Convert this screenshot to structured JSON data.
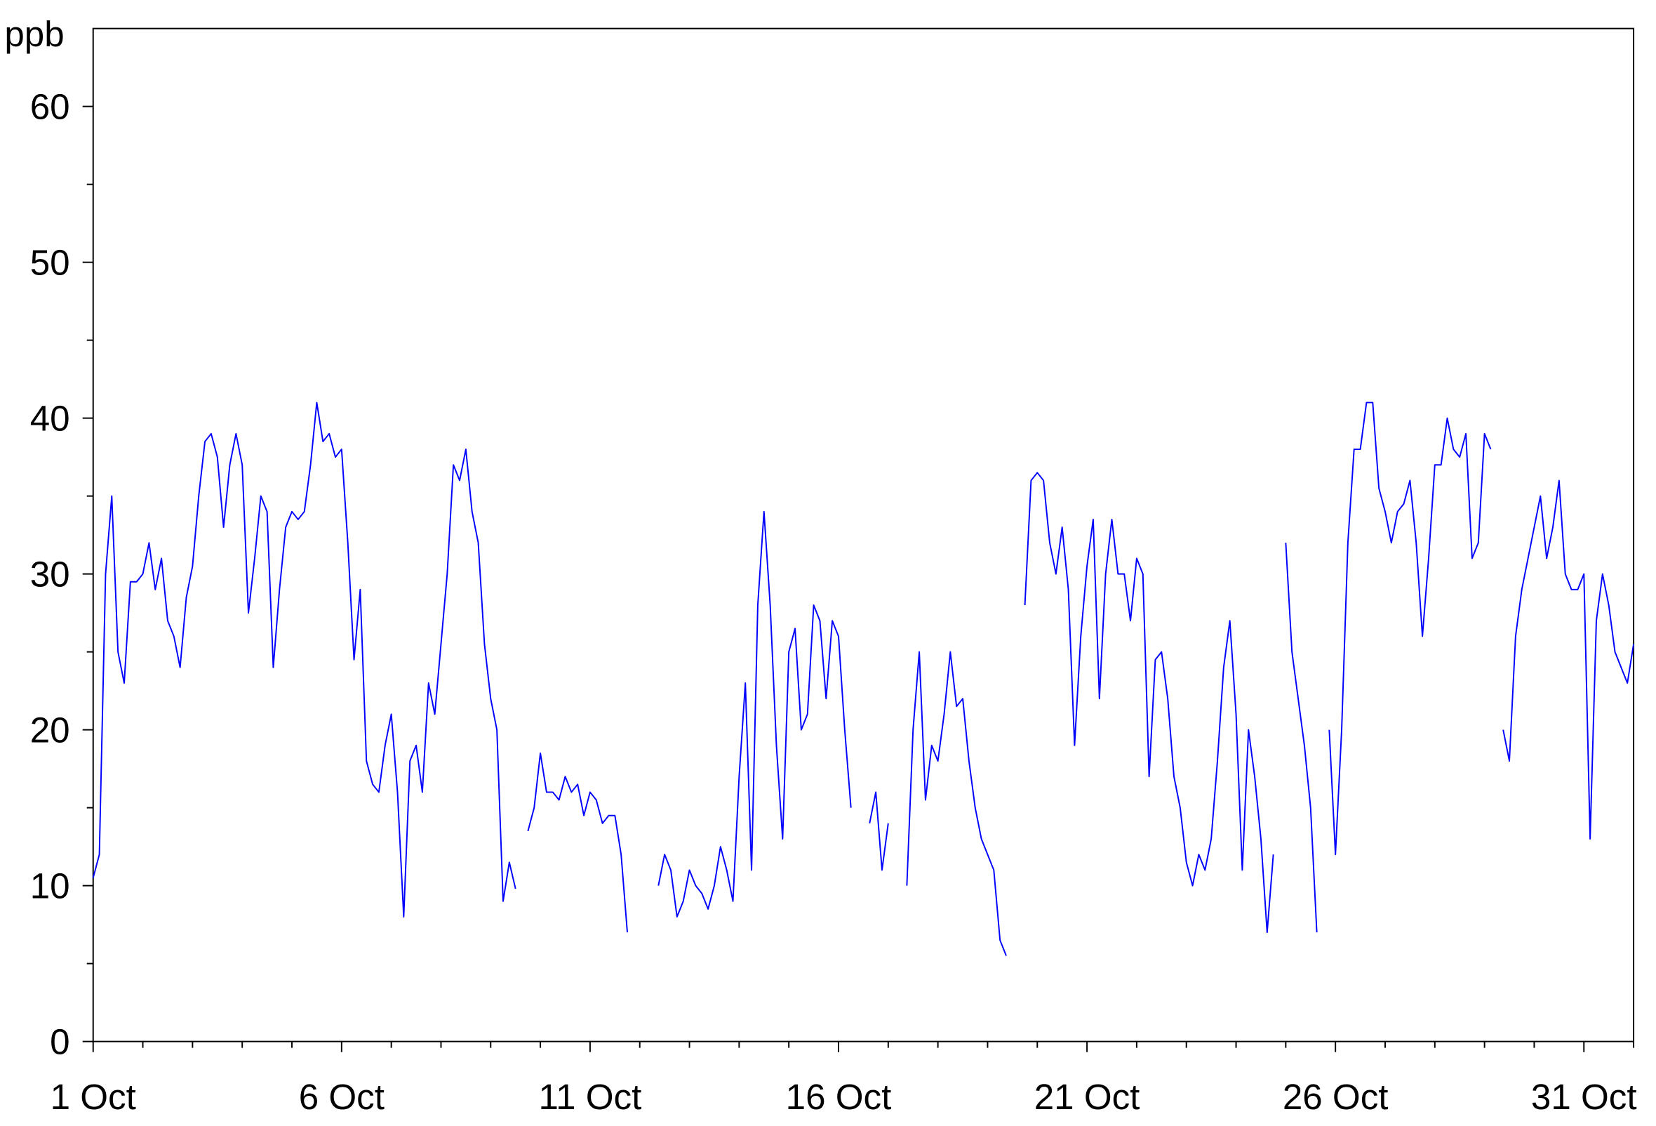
{
  "chart_data": {
    "type": "line",
    "ylabel": "ppb",
    "x": [
      1,
      1.125,
      1.25,
      1.375,
      1.5,
      1.625,
      1.75,
      1.875,
      2,
      2.125,
      2.25,
      2.375,
      2.5,
      2.625,
      2.75,
      2.875,
      3,
      3.125,
      3.25,
      3.375,
      3.5,
      3.625,
      3.75,
      3.875,
      4,
      4.125,
      4.25,
      4.375,
      4.5,
      4.625,
      4.75,
      4.875,
      5,
      5.125,
      5.25,
      5.375,
      5.5,
      5.625,
      5.75,
      5.875,
      6,
      6.125,
      6.25,
      6.375,
      6.5,
      6.625,
      6.75,
      6.875,
      7,
      7.125,
      7.25,
      7.375,
      7.5,
      7.625,
      7.75,
      7.875,
      8,
      8.125,
      8.25,
      8.375,
      8.5,
      8.625,
      8.75,
      8.875,
      9,
      9.125,
      9.25,
      9.375,
      9.5,
      9.625,
      9.75,
      9.875,
      10,
      10.125,
      10.25,
      10.375,
      10.5,
      10.625,
      10.75,
      10.875,
      11,
      11.125,
      11.25,
      11.375,
      11.5,
      11.625,
      11.75,
      11.875,
      12,
      12.125,
      12.25,
      12.375,
      12.5,
      12.625,
      12.75,
      12.875,
      13,
      13.125,
      13.25,
      13.375,
      13.5,
      13.625,
      13.75,
      13.875,
      14,
      14.125,
      14.25,
      14.375,
      14.5,
      14.625,
      14.75,
      14.875,
      15,
      15.125,
      15.25,
      15.375,
      15.5,
      15.625,
      15.75,
      15.875,
      16,
      16.125,
      16.25,
      16.375,
      16.5,
      16.625,
      16.75,
      16.875,
      17,
      17.125,
      17.25,
      17.375,
      17.5,
      17.625,
      17.75,
      17.875,
      18,
      18.125,
      18.25,
      18.375,
      18.5,
      18.625,
      18.75,
      18.875,
      19,
      19.125,
      19.25,
      19.375,
      19.5,
      19.625,
      19.75,
      19.875,
      20,
      20.125,
      20.25,
      20.375,
      20.5,
      20.625,
      20.75,
      20.875,
      21,
      21.125,
      21.25,
      21.375,
      21.5,
      21.625,
      21.75,
      21.875,
      22,
      22.125,
      22.25,
      22.375,
      22.5,
      22.625,
      22.75,
      22.875,
      23,
      23.125,
      23.25,
      23.375,
      23.5,
      23.625,
      23.75,
      23.875,
      24,
      24.125,
      24.25,
      24.375,
      24.5,
      24.625,
      24.75,
      24.875,
      25,
      25.125,
      25.25,
      25.375,
      25.5,
      25.625,
      25.75,
      25.875,
      26,
      26.125,
      26.25,
      26.375,
      26.5,
      26.625,
      26.75,
      26.875,
      27,
      27.125,
      27.25,
      27.375,
      27.5,
      27.625,
      27.75,
      27.875,
      28,
      28.125,
      28.25,
      28.375,
      28.5,
      28.625,
      28.75,
      28.875,
      29,
      29.125,
      29.25,
      29.375,
      29.5,
      29.625,
      29.75,
      29.875,
      30,
      30.125,
      30.25,
      30.375,
      30.5,
      30.625,
      30.75,
      30.875,
      31,
      31.125,
      31.25,
      31.375,
      31.5,
      31.625,
      31.75,
      31.875,
      32
    ],
    "series": [
      {
        "color": "#0000ff",
        "values": [
          10.5,
          12,
          30,
          35,
          25,
          23,
          29.5,
          29.5,
          30,
          32,
          29,
          31,
          27,
          26,
          24,
          28.5,
          30.5,
          35,
          38.5,
          39,
          37.5,
          33,
          37,
          39,
          37,
          27.5,
          31,
          35,
          34,
          24,
          29,
          33,
          34,
          33.5,
          34,
          37,
          41,
          38.5,
          39,
          37.5,
          38,
          32,
          24.5,
          29,
          18,
          16.5,
          16,
          19,
          21,
          16,
          8,
          18,
          19,
          16,
          23,
          21,
          25.5,
          30,
          37,
          36,
          38,
          34,
          32,
          25.5,
          22,
          20,
          9,
          11.5,
          9.8,
          null,
          13.5,
          15,
          18.5,
          16,
          16,
          15.5,
          17,
          16,
          16.5,
          14.5,
          16,
          15.5,
          14,
          14.5,
          14.5,
          12,
          7,
          null,
          null,
          null,
          null,
          10,
          12,
          11,
          8,
          9,
          11,
          10,
          9.5,
          8.5,
          10,
          12.5,
          11,
          9,
          17,
          23,
          11,
          28,
          34,
          28,
          19,
          13,
          25,
          26.5,
          20,
          21,
          28,
          27,
          22,
          27,
          26,
          20,
          15,
          null,
          null,
          14,
          16,
          11,
          14,
          null,
          null,
          10,
          20,
          25,
          15.5,
          19,
          18,
          21,
          25,
          21.5,
          22,
          18,
          15,
          13,
          12,
          11,
          6.5,
          5.5,
          null,
          null,
          28,
          36,
          36.5,
          36,
          32,
          30,
          33,
          29,
          19,
          26,
          30.5,
          33.5,
          22,
          30,
          33.5,
          30,
          30,
          27,
          31,
          30,
          17,
          24.5,
          25,
          22,
          17,
          15,
          11.5,
          10,
          12,
          11,
          13,
          18,
          24,
          27,
          21,
          11,
          20,
          17,
          13,
          7,
          12,
          null,
          32,
          25,
          22,
          19,
          15,
          7,
          null,
          20,
          12,
          20,
          32,
          38,
          38,
          41,
          41,
          35.5,
          34,
          32,
          34,
          34.5,
          36,
          32,
          26,
          31,
          37,
          37,
          40,
          38,
          37.5,
          39,
          31,
          32,
          39,
          38,
          null,
          20,
          18,
          26,
          29,
          31,
          33,
          35,
          31,
          33,
          36,
          30,
          29,
          29,
          30,
          13,
          27,
          30,
          28,
          25,
          24,
          23,
          25.5
        ]
      }
    ],
    "xlim": [
      1,
      32
    ],
    "xticks": [
      {
        "value": 1,
        "label": "1 Oct"
      },
      {
        "value": 6,
        "label": "6 Oct"
      },
      {
        "value": 11,
        "label": "11 Oct"
      },
      {
        "value": 16,
        "label": "16 Oct"
      },
      {
        "value": 21,
        "label": "21 Oct"
      },
      {
        "value": 26,
        "label": "26 Oct"
      },
      {
        "value": 31,
        "label": "31 Oct"
      }
    ],
    "xticks_minor": [
      2,
      3,
      4,
      5,
      7,
      8,
      9,
      10,
      12,
      13,
      14,
      15,
      17,
      18,
      19,
      20,
      22,
      23,
      24,
      25,
      27,
      28,
      29,
      30,
      32
    ],
    "ylim": [
      0,
      65
    ],
    "yticks": [
      0,
      10,
      20,
      30,
      40,
      50,
      60
    ],
    "yticks_minor": [
      5,
      15,
      25,
      35,
      45,
      55
    ],
    "grid": false
  }
}
